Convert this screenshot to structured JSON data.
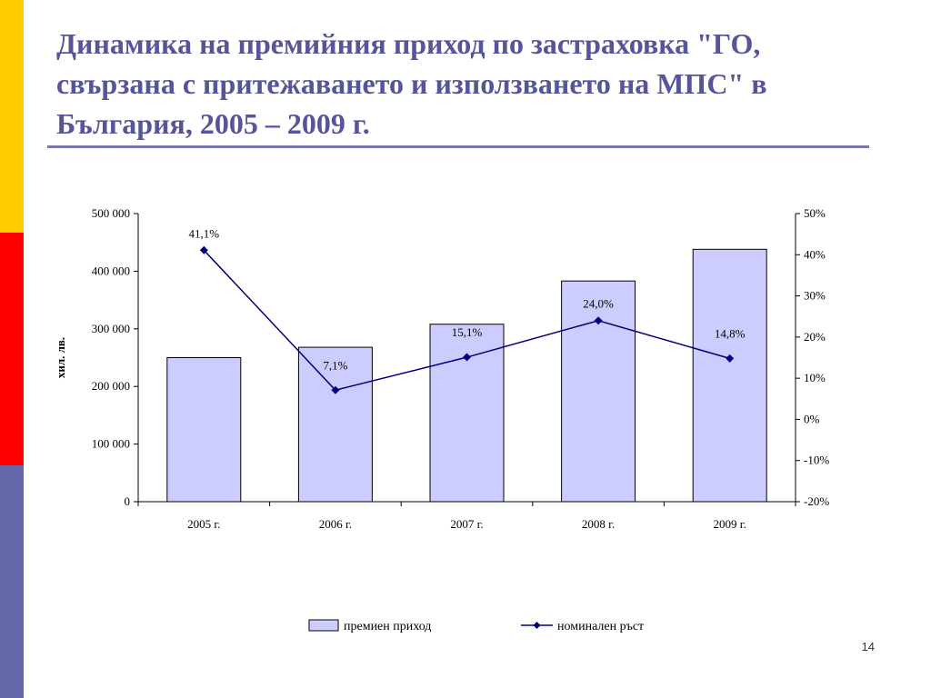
{
  "slide": {
    "title": "Динамика на премийния приход по застраховка \"ГО, свързана с притежаването и използването на МПС\" в България, 2005 – 2009 г.",
    "page_number": "14"
  },
  "colors": {
    "accent_yellow": "#ffcc00",
    "accent_red": "#ff0000",
    "accent_blue": "#6666aa",
    "title": "#555599",
    "bar_fill": "#ccccff",
    "line": "#000080"
  },
  "chart_data": {
    "type": "bar",
    "categories": [
      "2005 г.",
      "2006 г.",
      "2007 г.",
      "2008 г.",
      "2009 г."
    ],
    "ylabel": "хил. лв.",
    "ylim": [
      0,
      500000
    ],
    "yticks": [
      "0",
      "100 000",
      "200 000",
      "300 000",
      "400 000",
      "500 000"
    ],
    "y2lim": [
      -20,
      50
    ],
    "y2ticks": [
      "-20%",
      "-10%",
      "0%",
      "10%",
      "20%",
      "30%",
      "40%",
      "50%"
    ],
    "series": [
      {
        "name": "премиен приход",
        "type": "bar",
        "axis": "left",
        "values": [
          250000,
          268000,
          308000,
          383000,
          438000
        ]
      },
      {
        "name": "номинален ръст",
        "type": "line",
        "axis": "right",
        "marker": "diamond",
        "values": [
          41.1,
          7.1,
          15.1,
          24.0,
          14.8
        ],
        "labels": [
          "41,1%",
          "7,1%",
          "15,1%",
          "24,0%",
          "14,8%"
        ]
      }
    ],
    "legend_position": "bottom",
    "grid": false
  }
}
